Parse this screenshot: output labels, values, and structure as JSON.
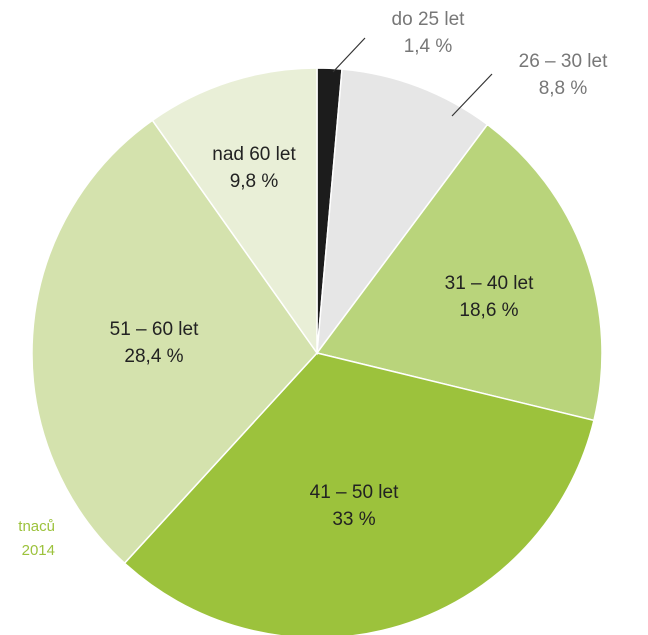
{
  "chart_data": {
    "type": "pie",
    "categories": [
      "do 25 let",
      "26 – 30 let",
      "31 – 40 let",
      "41 – 50 let",
      "51 – 60 let",
      "nad 60 let"
    ],
    "values": [
      1.4,
      8.8,
      18.6,
      33,
      28.4,
      9.8
    ],
    "value_labels": [
      "1,4 %",
      "8,8 %",
      "18,6 %",
      "33 %",
      "28,4 %",
      "9,8 %"
    ],
    "colors": [
      "#1c1c1c",
      "#e6e6e6",
      "#b9d47b",
      "#9cc23c",
      "#d4e2ad",
      "#e9efd7"
    ],
    "annotations": [
      "tnaců",
      "2014"
    ]
  }
}
